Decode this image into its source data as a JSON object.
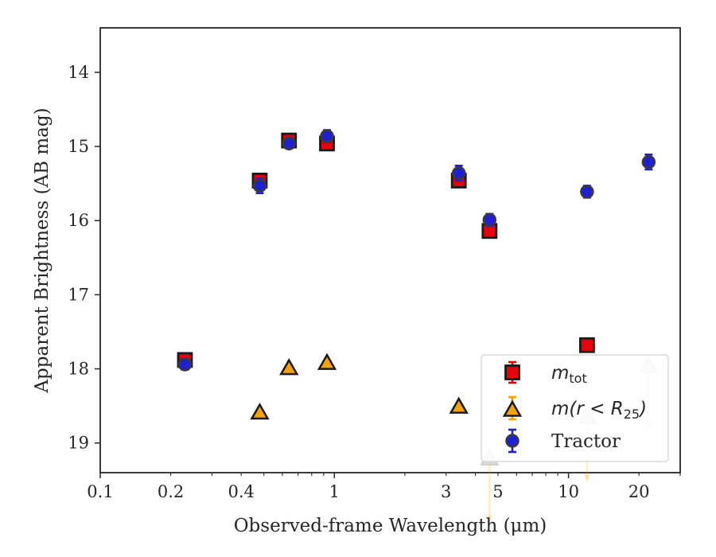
{
  "chart_data": {
    "type": "scatter",
    "xlabel": "Observed-frame Wavelength (μm)",
    "ylabel": "Apparent Brightness (AB mag)",
    "xscale": "log",
    "xlim": [
      0.1,
      30
    ],
    "ylim": [
      19.4,
      13.4
    ],
    "y_inverted": true,
    "x_tick_labels": [
      {
        "value": 0.1,
        "label": "0.1"
      },
      {
        "value": 0.2,
        "label": "0.2"
      },
      {
        "value": 0.4,
        "label": "0.4"
      },
      {
        "value": 1,
        "label": "1"
      },
      {
        "value": 3,
        "label": "3"
      },
      {
        "value": 5,
        "label": "5"
      },
      {
        "value": 10,
        "label": "10"
      },
      {
        "value": 20,
        "label": "20"
      }
    ],
    "y_ticks": [
      14,
      15,
      16,
      17,
      18,
      19
    ],
    "grid": false,
    "legend_position": "bottom-right",
    "series": [
      {
        "name": "m_tot",
        "legend_main": "m",
        "legend_sub": "tot",
        "marker": "square",
        "color": "#e8000b",
        "edge_color": "#1a1a1a",
        "points": [
          {
            "x": 0.23,
            "y": 17.88,
            "err": 0.05
          },
          {
            "x": 0.48,
            "y": 15.46,
            "err": 0.07
          },
          {
            "x": 0.64,
            "y": 14.92,
            "err": 0.05
          },
          {
            "x": 0.93,
            "y": 14.96,
            "err": 0.07
          },
          {
            "x": 3.4,
            "y": 15.46,
            "err": 0.07
          },
          {
            "x": 4.6,
            "y": 16.14,
            "err": 0.07
          },
          {
            "x": 12.0,
            "y": 17.68,
            "err": 0.07
          }
        ]
      },
      {
        "name": "m(r < R25)",
        "legend_main": "m(r < R",
        "legend_sub": "25",
        "legend_tail": ")",
        "marker": "triangle",
        "color": "#f5a300",
        "edge_color": "#1a1a1a",
        "points": [
          {
            "x": 0.48,
            "y": 18.59,
            "upper_limit": false
          },
          {
            "x": 0.64,
            "y": 17.99,
            "upper_limit": false
          },
          {
            "x": 0.93,
            "y": 17.92,
            "upper_limit": false
          },
          {
            "x": 3.4,
            "y": 18.51,
            "upper_limit": false
          },
          {
            "x": 4.6,
            "y": 19.21,
            "upper_limit": true
          },
          {
            "x": 12.0,
            "y": 18.65,
            "upper_limit": true
          },
          {
            "x": 22.0,
            "y": 17.96,
            "upper_limit": true
          }
        ]
      },
      {
        "name": "Tractor",
        "legend_main": "Tractor",
        "marker": "circle",
        "color": "#1f1fd8",
        "edge_color": "#3a3a3a",
        "points": [
          {
            "x": 0.23,
            "y": 17.94,
            "err": 0.07
          },
          {
            "x": 0.48,
            "y": 15.53,
            "err": 0.1
          },
          {
            "x": 0.64,
            "y": 14.96,
            "err": 0.06
          },
          {
            "x": 0.93,
            "y": 14.86,
            "err": 0.08
          },
          {
            "x": 3.4,
            "y": 15.36,
            "err": 0.1
          },
          {
            "x": 4.6,
            "y": 15.99,
            "err": 0.08
          },
          {
            "x": 12.0,
            "y": 15.61,
            "err": 0.08
          },
          {
            "x": 22.0,
            "y": 15.21,
            "err": 0.1
          }
        ]
      }
    ]
  }
}
